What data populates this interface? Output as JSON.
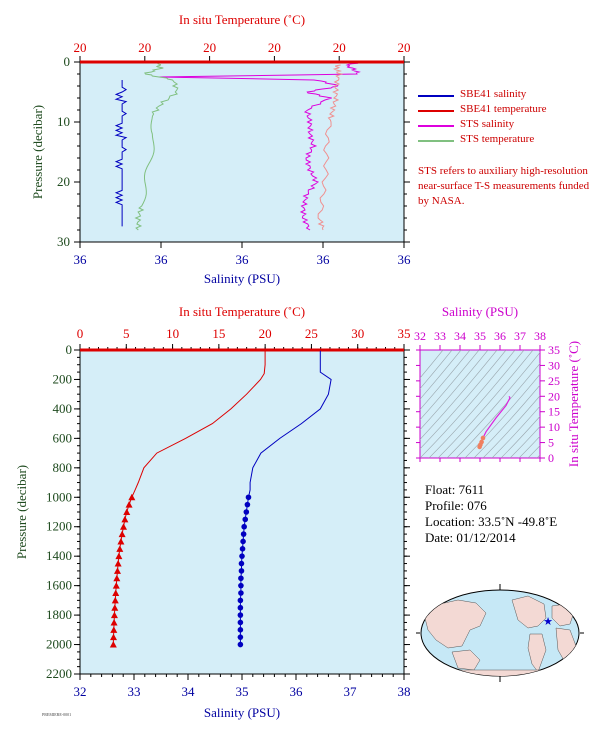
{
  "chart_data": [
    {
      "type": "line",
      "title": "In situ Temperature (˚C)",
      "xlabel": "Salinity (PSU)",
      "ylabel": "Pressure (decibar)",
      "top_axis_label": "In situ Temperature (˚C)",
      "top_tick_labels": [
        "20",
        "20",
        "20",
        "20",
        "20",
        "20"
      ],
      "bottom_tick_labels": [
        "36",
        "36",
        "36",
        "36",
        "36"
      ],
      "y_tick_labels": [
        "0",
        "10",
        "20",
        "30"
      ],
      "ylim": [
        0,
        30
      ],
      "series": [
        {
          "name": "SBE41 salinity",
          "color": "#0000c0",
          "pressure": [
            3.0,
            27.5
          ],
          "pos": [
            0.13,
            0.13
          ]
        },
        {
          "name": "STS salinity",
          "color": "#dd00dd",
          "pressure": [
            0.2,
            0.5,
            1,
            2,
            2.5,
            3,
            4,
            5,
            6,
            8,
            10,
            12,
            14,
            16,
            18,
            20,
            22,
            24,
            26,
            28
          ],
          "pos": [
            0.86,
            0.82,
            0.84,
            0.86,
            0.25,
            0.73,
            0.8,
            0.7,
            0.77,
            0.7,
            0.71,
            0.71,
            0.72,
            0.7,
            0.71,
            0.73,
            0.7,
            0.69,
            0.69,
            0.71
          ]
        },
        {
          "name": "STS temperature",
          "color": "#80c080",
          "pressure": [
            0.2,
            0.5,
            1,
            2,
            3,
            5,
            7,
            9,
            12,
            15,
            18,
            21,
            24,
            26,
            28
          ],
          "pos": [
            0.25,
            0.24,
            0.25,
            0.2,
            0.29,
            0.3,
            0.25,
            0.22,
            0.23,
            0.22,
            0.21,
            0.2,
            0.19,
            0.18,
            0.18
          ]
        },
        {
          "name": "STS temperature (salmon)",
          "color": "#f09090",
          "pressure": [
            0.5,
            1,
            2,
            4,
            6,
            8,
            10,
            14,
            18,
            22,
            26,
            28
          ],
          "pos": [
            0.8,
            0.79,
            0.8,
            0.79,
            0.79,
            0.78,
            0.77,
            0.76,
            0.76,
            0.75,
            0.74,
            0.75
          ]
        }
      ]
    },
    {
      "type": "line",
      "title": "In situ Temperature (˚C)",
      "xlabel": "Salinity (PSU)",
      "ylabel": "Pressure (decibar)",
      "top_axis_label": "In situ Temperature (˚C)",
      "xlim_temperature": [
        0,
        35
      ],
      "xlim_salinity": [
        32,
        38
      ],
      "ylim": [
        2200,
        0
      ],
      "top_tick_labels": [
        "0",
        "5",
        "10",
        "15",
        "20",
        "25",
        "30",
        "35"
      ],
      "bottom_tick_labels": [
        "32",
        "33",
        "34",
        "35",
        "36",
        "37",
        "38"
      ],
      "y_tick_labels": [
        "0",
        "200",
        "400",
        "600",
        "800",
        "1000",
        "1200",
        "1400",
        "1600",
        "1800",
        "2000",
        "2200"
      ],
      "series": [
        {
          "name": "Temperature",
          "color": "#dd0000",
          "marker": "triangle",
          "pressure": [
            5,
            100,
            160,
            200,
            300,
            400,
            500,
            600,
            700,
            800,
            900,
            950,
            1000,
            1050,
            1100,
            1150,
            1200,
            1250,
            1300,
            1350,
            1400,
            1450,
            1500,
            1550,
            1600,
            1650,
            1700,
            1750,
            1800,
            1850,
            1900,
            1950,
            2000
          ],
          "temperature": [
            20.0,
            20.0,
            19.9,
            19.5,
            18.0,
            16.3,
            14.3,
            11.4,
            8.3,
            6.9,
            6.3,
            5.95,
            5.6,
            5.3,
            5.05,
            4.85,
            4.7,
            4.55,
            4.42,
            4.3,
            4.2,
            4.12,
            4.05,
            3.98,
            3.92,
            3.86,
            3.81,
            3.76,
            3.72,
            3.68,
            3.65,
            3.62,
            3.6
          ]
        },
        {
          "name": "Salinity",
          "color": "#0000c0",
          "marker": "circle",
          "pressure": [
            5,
            100,
            150,
            200,
            300,
            400,
            500,
            600,
            700,
            800,
            900,
            950,
            1000,
            1050,
            1100,
            1150,
            1200,
            1250,
            1300,
            1350,
            1400,
            1450,
            1500,
            1550,
            1600,
            1650,
            1700,
            1750,
            1800,
            1850,
            1900,
            1950,
            2000
          ],
          "salinity": [
            36.45,
            36.45,
            36.45,
            36.65,
            36.6,
            36.45,
            36.1,
            35.7,
            35.35,
            35.2,
            35.15,
            35.15,
            35.12,
            35.1,
            35.08,
            35.06,
            35.04,
            35.03,
            35.02,
            35.01,
            35.0,
            34.99,
            34.99,
            34.98,
            34.98,
            34.98,
            34.97,
            34.97,
            34.97,
            34.97,
            34.97,
            34.97,
            34.97
          ]
        }
      ]
    },
    {
      "type": "scatter",
      "title": "Salinity (PSU)",
      "xlabel": "Salinity (PSU)",
      "ylabel": "In situ Temperature (˚C)",
      "xlim": [
        32,
        38
      ],
      "ylim": [
        0,
        35
      ],
      "x_tick_labels": [
        "32",
        "33",
        "34",
        "35",
        "36",
        "37",
        "38"
      ],
      "y_tick_labels": [
        "0",
        "5",
        "10",
        "15",
        "20",
        "25",
        "30",
        "35"
      ],
      "series": [
        {
          "name": "T-S profile",
          "color": "#dd22dd",
          "x": [
            36.45,
            36.5,
            36.3,
            35.8,
            35.3,
            35.15,
            35.08,
            35.02,
            34.98
          ],
          "y": [
            20.0,
            19.5,
            17.0,
            13.0,
            8.5,
            6.5,
            5.2,
            4.3,
            3.6
          ]
        }
      ]
    }
  ],
  "legend": {
    "entries": [
      {
        "label": "SBE41 salinity",
        "color": "#0000c0"
      },
      {
        "label": "SBE41 temperature",
        "color": "#dd0000"
      },
      {
        "label": "STS salinity",
        "color": "#dd00dd"
      },
      {
        "label": "STS temperature",
        "color": "#80c080"
      }
    ],
    "note": "STS refers to auxiliary high-resolution near-surface T-S measurements funded by NASA."
  },
  "float_info": {
    "float": "Float:  7611",
    "profile": "Profile:  076",
    "location": "Location:  33.5˚N  -49.8˚E",
    "date": "Date:  01/12/2014"
  },
  "colors": {
    "plot_background": "#d5eef8",
    "temperature": "#dd0000",
    "salinity": "#0000c0",
    "ts_axis": "#cc00cc",
    "pressure_label": "#1e4a1e"
  },
  "footer_code": "PREMIERE-0001"
}
